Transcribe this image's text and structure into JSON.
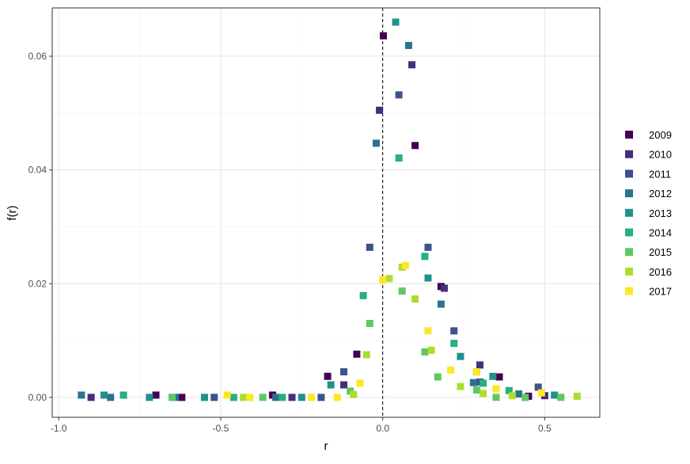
{
  "chart_data": {
    "type": "scatter",
    "title": "",
    "xlabel": "r",
    "ylabel": "f(r)",
    "xlim": [
      -1.02,
      0.67
    ],
    "ylim": [
      -0.0035,
      0.0685
    ],
    "x_ticks": [
      -1.0,
      -0.5,
      0.0,
      0.5
    ],
    "x_tick_labels": [
      "-1.0",
      "-0.5",
      "0.0",
      "0.5"
    ],
    "y_ticks": [
      0.0,
      0.02,
      0.04,
      0.06
    ],
    "y_tick_labels": [
      "0.00",
      "0.02",
      "0.04",
      "0.06"
    ],
    "grid": true,
    "reference_line": {
      "x": 0.0,
      "style": "dashed"
    },
    "legend_position": "right",
    "marker": "square",
    "series": [
      {
        "name": "2009",
        "color": "#440154",
        "points": [
          [
            -0.7,
            0.0004
          ],
          [
            -0.62,
            0.0
          ],
          [
            -0.34,
            0.0004
          ],
          [
            -0.17,
            0.0037
          ],
          [
            -0.08,
            0.0076
          ],
          [
            0.002,
            0.0636
          ],
          [
            0.1,
            0.0443
          ],
          [
            0.18,
            0.0195
          ],
          [
            0.29,
            0.0045
          ],
          [
            0.36,
            0.0036
          ],
          [
            0.45,
            0.0002
          ]
        ]
      },
      {
        "name": "2010",
        "color": "#472D7B",
        "points": [
          [
            -0.9,
            0.0
          ],
          [
            -0.28,
            0.0
          ],
          [
            -0.12,
            0.0022
          ],
          [
            -0.01,
            0.0505
          ],
          [
            0.09,
            0.0585
          ],
          [
            0.19,
            0.0192
          ],
          [
            0.3,
            0.0057
          ],
          [
            0.5,
            0.0003
          ]
        ]
      },
      {
        "name": "2011",
        "color": "#3B528B",
        "points": [
          [
            -0.52,
            0.0
          ],
          [
            -0.19,
            0.0
          ],
          [
            -0.12,
            0.0045
          ],
          [
            -0.04,
            0.0264
          ],
          [
            0.05,
            0.0532
          ],
          [
            0.14,
            0.0264
          ],
          [
            0.22,
            0.0117
          ],
          [
            0.3,
            0.0027
          ],
          [
            0.48,
            0.0018
          ]
        ]
      },
      {
        "name": "2012",
        "color": "#2C728E",
        "points": [
          [
            -0.93,
            0.0004
          ],
          [
            -0.84,
            0.0
          ],
          [
            -0.64,
            0.0
          ],
          [
            -0.33,
            0.0
          ],
          [
            -0.02,
            0.0447
          ],
          [
            0.08,
            0.0619
          ],
          [
            0.18,
            0.0164
          ],
          [
            0.28,
            0.0026
          ],
          [
            0.42,
            0.0006
          ]
        ]
      },
      {
        "name": "2013",
        "color": "#21918C",
        "points": [
          [
            -0.86,
            0.0004
          ],
          [
            -0.72,
            0.0
          ],
          [
            -0.55,
            0.0
          ],
          [
            -0.25,
            0.0
          ],
          [
            -0.16,
            0.0022
          ],
          [
            0.04,
            0.066
          ],
          [
            0.14,
            0.021
          ],
          [
            0.24,
            0.0072
          ],
          [
            0.34,
            0.0037
          ],
          [
            0.53,
            0.0004
          ]
        ]
      },
      {
        "name": "2014",
        "color": "#28AE80",
        "points": [
          [
            -0.8,
            0.0004
          ],
          [
            -0.46,
            0.0
          ],
          [
            -0.31,
            0.0
          ],
          [
            -0.06,
            0.0179
          ],
          [
            0.05,
            0.0421
          ],
          [
            0.13,
            0.0248
          ],
          [
            0.22,
            0.0095
          ],
          [
            0.31,
            0.0025
          ],
          [
            0.39,
            0.0012
          ]
        ]
      },
      {
        "name": "2015",
        "color": "#5EC962",
        "points": [
          [
            -0.65,
            0.0
          ],
          [
            -0.37,
            0.0
          ],
          [
            -0.1,
            0.0011
          ],
          [
            -0.04,
            0.013
          ],
          [
            0.06,
            0.0187
          ],
          [
            0.13,
            0.008
          ],
          [
            0.17,
            0.0036
          ],
          [
            0.29,
            0.0013
          ],
          [
            0.35,
            0.0
          ],
          [
            0.44,
            0.0
          ],
          [
            0.55,
            0.0
          ]
        ]
      },
      {
        "name": "2016",
        "color": "#ADDC30",
        "points": [
          [
            -0.43,
            0.0
          ],
          [
            -0.09,
            0.0005
          ],
          [
            -0.05,
            0.0075
          ],
          [
            0.02,
            0.0209
          ],
          [
            0.06,
            0.0229
          ],
          [
            0.1,
            0.0173
          ],
          [
            0.15,
            0.0083
          ],
          [
            0.24,
            0.0019
          ],
          [
            0.31,
            0.0007
          ],
          [
            0.4,
            0.0003
          ],
          [
            0.6,
            0.0002
          ]
        ]
      },
      {
        "name": "2017",
        "color": "#FDE725",
        "points": [
          [
            -0.48,
            0.0004
          ],
          [
            -0.41,
            0.0
          ],
          [
            -0.22,
            0.0
          ],
          [
            -0.14,
            0.0
          ],
          [
            -0.07,
            0.0025
          ],
          [
            0.0,
            0.0207
          ],
          [
            0.07,
            0.0232
          ],
          [
            0.14,
            0.0117
          ],
          [
            0.21,
            0.0048
          ],
          [
            0.29,
            0.0045
          ],
          [
            0.35,
            0.0015
          ],
          [
            0.49,
            0.0008
          ]
        ]
      }
    ]
  }
}
